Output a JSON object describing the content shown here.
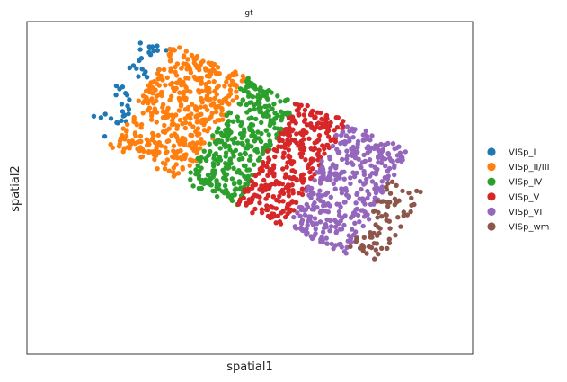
{
  "chart_data": {
    "type": "scatter",
    "title": "gt",
    "xlabel": "spatial1",
    "ylabel": "spatial2",
    "ticks_shown": false,
    "grid": false,
    "legend_position": "right",
    "series": [
      {
        "name": "VISp_I",
        "color": "#1f77b4"
      },
      {
        "name": "VISp_II/III",
        "color": "#ff7f0e"
      },
      {
        "name": "VISp_IV",
        "color": "#2ca02c"
      },
      {
        "name": "VISp_V",
        "color": "#d62728"
      },
      {
        "name": "VISp_VI",
        "color": "#9467bd"
      },
      {
        "name": "VISp_wm",
        "color": "#8c564b"
      }
    ]
  }
}
